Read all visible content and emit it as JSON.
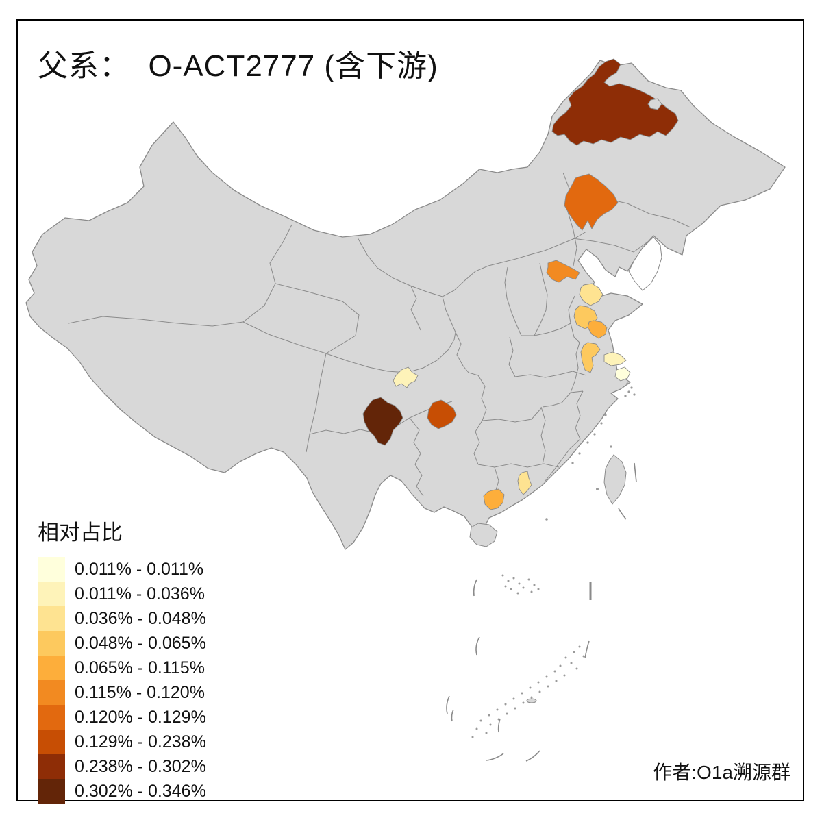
{
  "title": "父系：  O-ACT2777 (含下游)",
  "caption": "作者:O1a溯源群",
  "legend": {
    "title": "相对占比",
    "items": [
      {
        "label": "0.011% - 0.011%",
        "color": "#FFFFDC"
      },
      {
        "label": "0.011% - 0.036%",
        "color": "#FEF3B9"
      },
      {
        "label": "0.036% - 0.048%",
        "color": "#FEE391"
      },
      {
        "label": "0.048% - 0.065%",
        "color": "#FDC95E"
      },
      {
        "label": "0.065% - 0.115%",
        "color": "#FDAE3B"
      },
      {
        "label": "0.115% - 0.120%",
        "color": "#F28A21"
      },
      {
        "label": "0.120% - 0.129%",
        "color": "#E2690F"
      },
      {
        "label": "0.129% - 0.238%",
        "color": "#C74E04"
      },
      {
        "label": "0.238% - 0.302%",
        "color": "#8E2D06"
      },
      {
        "label": "0.302% - 0.346%",
        "color": "#632508"
      }
    ]
  },
  "map": {
    "base_fill": "#D8D8D8",
    "border_color": "#8A8A8A",
    "sea_color": "#FFFFFF",
    "regions": [
      {
        "id": "ne-inner-mongolia-large",
        "class_index": 8
      },
      {
        "id": "jilin-central",
        "class_index": 6
      },
      {
        "id": "hebei-central",
        "class_index": 5
      },
      {
        "id": "shandong-north",
        "class_index": 2
      },
      {
        "id": "shandong-central",
        "class_index": 3
      },
      {
        "id": "shandong-south",
        "class_index": 4
      },
      {
        "id": "jiangsu-central",
        "class_index": 3
      },
      {
        "id": "jiangsu-east",
        "class_index": 1
      },
      {
        "id": "shanghai",
        "class_index": 0
      },
      {
        "id": "sichuan-chengdu",
        "class_index": 1
      },
      {
        "id": "sichuan-south-liangshan",
        "class_index": 9
      },
      {
        "id": "guizhou-north",
        "class_index": 7
      },
      {
        "id": "guangdong-central",
        "class_index": 2
      },
      {
        "id": "guangdong-southwest",
        "class_index": 4
      }
    ]
  }
}
